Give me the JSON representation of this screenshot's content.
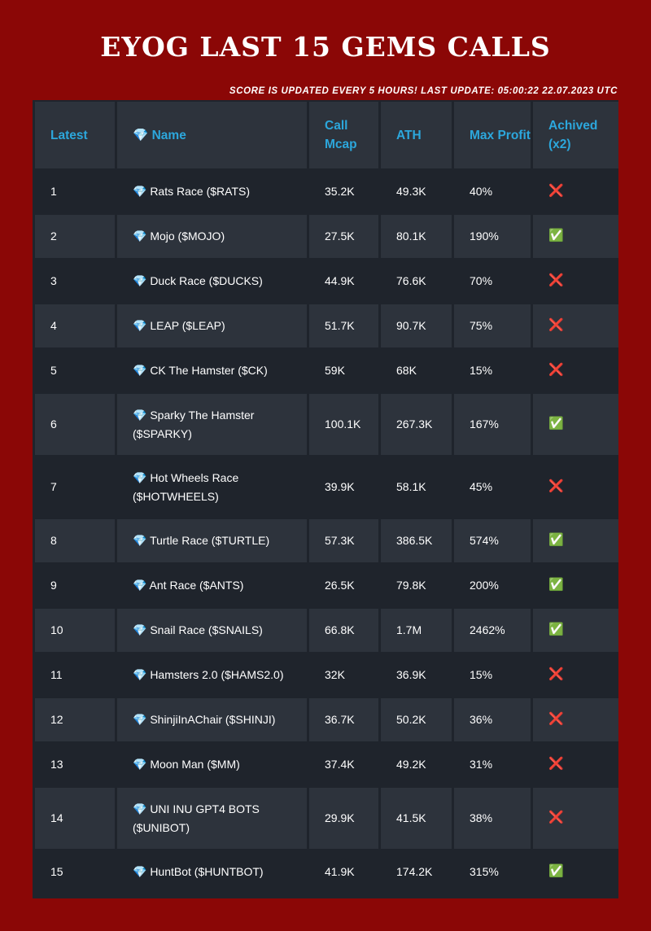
{
  "header": {
    "title": "EYOG LAST 15 GEMS CALLS",
    "update_note": "SCORE IS UPDATED EVERY 5 HOURS! LAST UPDATE: 05:00:22 22.07.2023 UTC"
  },
  "table": {
    "columns": [
      "Latest",
      "💎 Name",
      "Call Mcap",
      "ATH",
      "Max Profit",
      "Achived (x2)"
    ],
    "rows": [
      {
        "latest": "1",
        "name": "💎 Rats Race ($RATS)",
        "call_mcap": "35.2K",
        "ath": "49.3K",
        "max_profit": "40%",
        "achived": "❌"
      },
      {
        "latest": "2",
        "name": "💎 Mojo ($MOJO)",
        "call_mcap": "27.5K",
        "ath": "80.1K",
        "max_profit": "190%",
        "achived": "✅"
      },
      {
        "latest": "3",
        "name": "💎 Duck Race ($DUCKS)",
        "call_mcap": "44.9K",
        "ath": "76.6K",
        "max_profit": "70%",
        "achived": "❌"
      },
      {
        "latest": "4",
        "name": "💎 LEAP ($LEAP)",
        "call_mcap": "51.7K",
        "ath": "90.7K",
        "max_profit": "75%",
        "achived": "❌"
      },
      {
        "latest": "5",
        "name": "💎 CK The Hamster ($CK)",
        "call_mcap": "59K",
        "ath": "68K",
        "max_profit": "15%",
        "achived": "❌"
      },
      {
        "latest": "6",
        "name": "💎 Sparky The Hamster ($SPARKY)",
        "call_mcap": "100.1K",
        "ath": "267.3K",
        "max_profit": "167%",
        "achived": "✅"
      },
      {
        "latest": "7",
        "name": "💎 Hot Wheels Race ($HOTWHEELS)",
        "call_mcap": "39.9K",
        "ath": "58.1K",
        "max_profit": "45%",
        "achived": "❌"
      },
      {
        "latest": "8",
        "name": "💎 Turtle Race ($TURTLE)",
        "call_mcap": "57.3K",
        "ath": "386.5K",
        "max_profit": "574%",
        "achived": "✅"
      },
      {
        "latest": "9",
        "name": "💎 Ant Race ($ANTS)",
        "call_mcap": "26.5K",
        "ath": "79.8K",
        "max_profit": "200%",
        "achived": "✅"
      },
      {
        "latest": "10",
        "name": "💎 Snail Race ($SNAILS)",
        "call_mcap": "66.8K",
        "ath": "1.7M",
        "max_profit": "2462%",
        "achived": "✅"
      },
      {
        "latest": "11",
        "name": "💎 Hamsters 2.0 ($HAMS2.0)",
        "call_mcap": "32K",
        "ath": "36.9K",
        "max_profit": "15%",
        "achived": "❌"
      },
      {
        "latest": "12",
        "name": "💎 ShinjiInAChair ($SHINJI)",
        "call_mcap": "36.7K",
        "ath": "50.2K",
        "max_profit": "36%",
        "achived": "❌"
      },
      {
        "latest": "13",
        "name": "💎 Moon Man ($MM)",
        "call_mcap": "37.4K",
        "ath": "49.2K",
        "max_profit": "31%",
        "achived": "❌"
      },
      {
        "latest": "14",
        "name": "💎 UNI INU GPT4 BOTS ($UNIBOT)",
        "call_mcap": "29.9K",
        "ath": "41.5K",
        "max_profit": "38%",
        "achived": "❌"
      },
      {
        "latest": "15",
        "name": "💎 HuntBot ($HUNTBOT)",
        "call_mcap": "41.9K",
        "ath": "174.2K",
        "max_profit": "315%",
        "achived": "✅"
      }
    ]
  },
  "colors": {
    "background": "#8b0706",
    "table_dark": "#1f242c",
    "table_light": "#2d333c",
    "header_text": "#2ca7dc"
  }
}
